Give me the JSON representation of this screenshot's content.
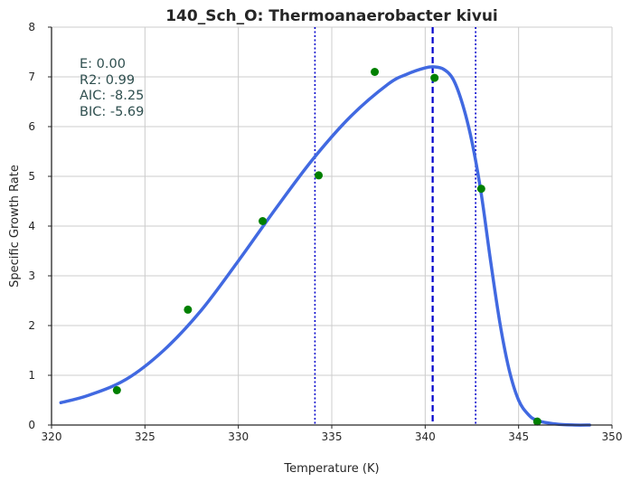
{
  "chart_data": {
    "type": "line",
    "title": "140_Sch_O: Thermoanaerobacter kivui",
    "xlabel": "Temperature (K)",
    "ylabel": "Specific Growth Rate",
    "xlim": [
      320,
      350
    ],
    "ylim": [
      0,
      8
    ],
    "xticks": [
      320,
      325,
      330,
      335,
      340,
      345,
      350
    ],
    "yticks": [
      0,
      1,
      2,
      3,
      4,
      5,
      6,
      7,
      8
    ],
    "grid": true,
    "stats": [
      "E:  0.00",
      "R2:  0.99",
      "AIC: -8.25",
      "BIC: -5.69"
    ],
    "colors": {
      "fit": "#4169e1",
      "points": "#008000",
      "vlines": "#0000cc"
    },
    "series": [
      {
        "style": "curve",
        "x": [
          320.5,
          322,
          324,
          326,
          328,
          330,
          332,
          334,
          336,
          338,
          339,
          340,
          340.5,
          341,
          341.5,
          342,
          342.5,
          343,
          343.5,
          344,
          344.5,
          345,
          345.5,
          346,
          347,
          348,
          348.8
        ],
        "y": [
          0.45,
          0.6,
          0.92,
          1.5,
          2.3,
          3.3,
          4.35,
          5.35,
          6.2,
          6.85,
          7.05,
          7.18,
          7.2,
          7.15,
          6.95,
          6.45,
          5.7,
          4.65,
          3.3,
          2.05,
          1.1,
          0.5,
          0.22,
          0.09,
          0.02,
          0.0,
          0.0
        ]
      },
      {
        "style": "points",
        "x": [
          323.5,
          327.3,
          331.3,
          334.3,
          337.3,
          340.5,
          343.0,
          346.0
        ],
        "y": [
          0.7,
          2.32,
          4.1,
          5.02,
          7.1,
          6.98,
          4.75,
          0.07
        ]
      }
    ],
    "vlines": [
      {
        "x": 334.1,
        "style": "dotted"
      },
      {
        "x": 340.4,
        "style": "dashed"
      },
      {
        "x": 342.7,
        "style": "dotted"
      }
    ]
  }
}
